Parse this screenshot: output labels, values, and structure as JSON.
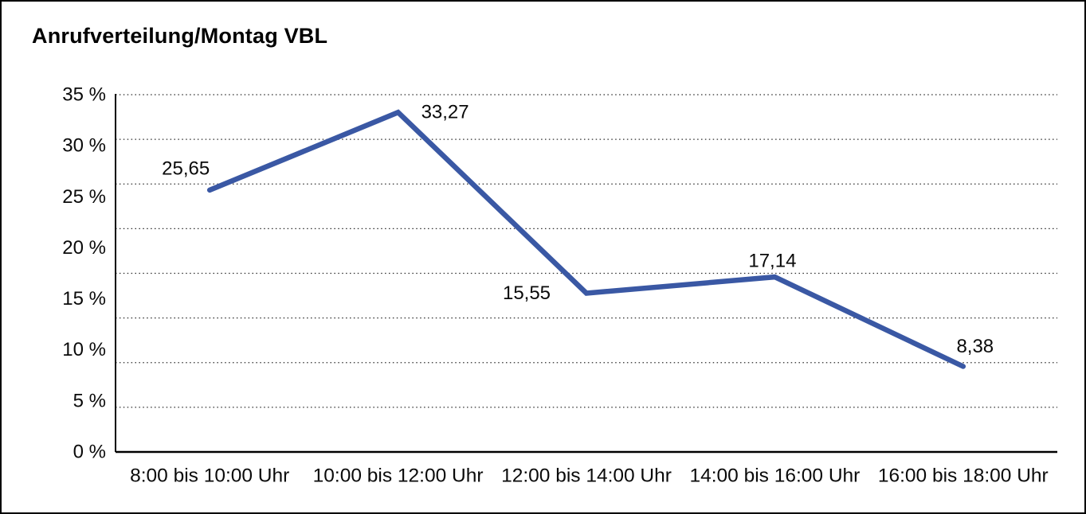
{
  "title": "Anrufverteilung/Montag VBL",
  "chart_data": {
    "type": "line",
    "title": "Anrufverteilung/Montag VBL",
    "categories": [
      "8:00 bis 10:00 Uhr",
      "10:00 bis 12:00 Uhr",
      "12:00 bis 14:00 Uhr",
      "14:00 bis 16:00 Uhr",
      "16:00 bis 18:00 Uhr"
    ],
    "series": [
      {
        "name": "Anrufverteilung Montag VBL",
        "values": [
          25.65,
          33.27,
          15.55,
          17.14,
          8.38
        ],
        "data_labels": [
          "25,65",
          "33,27",
          "15,55",
          "17,14",
          "8,38"
        ],
        "color": "#3a58a4"
      }
    ],
    "xlabel": "",
    "ylabel": "",
    "ylim": [
      0,
      35
    ],
    "y_tick_step": 5,
    "y_tick_labels": [
      "35 %",
      "30 %",
      "25 %",
      "20 %",
      "15 %",
      "10 %",
      "5 %",
      "0 %"
    ],
    "grid": "horizontal-dotted",
    "gridline_count": 8,
    "legend": "none",
    "label_decimal_separator": ","
  }
}
